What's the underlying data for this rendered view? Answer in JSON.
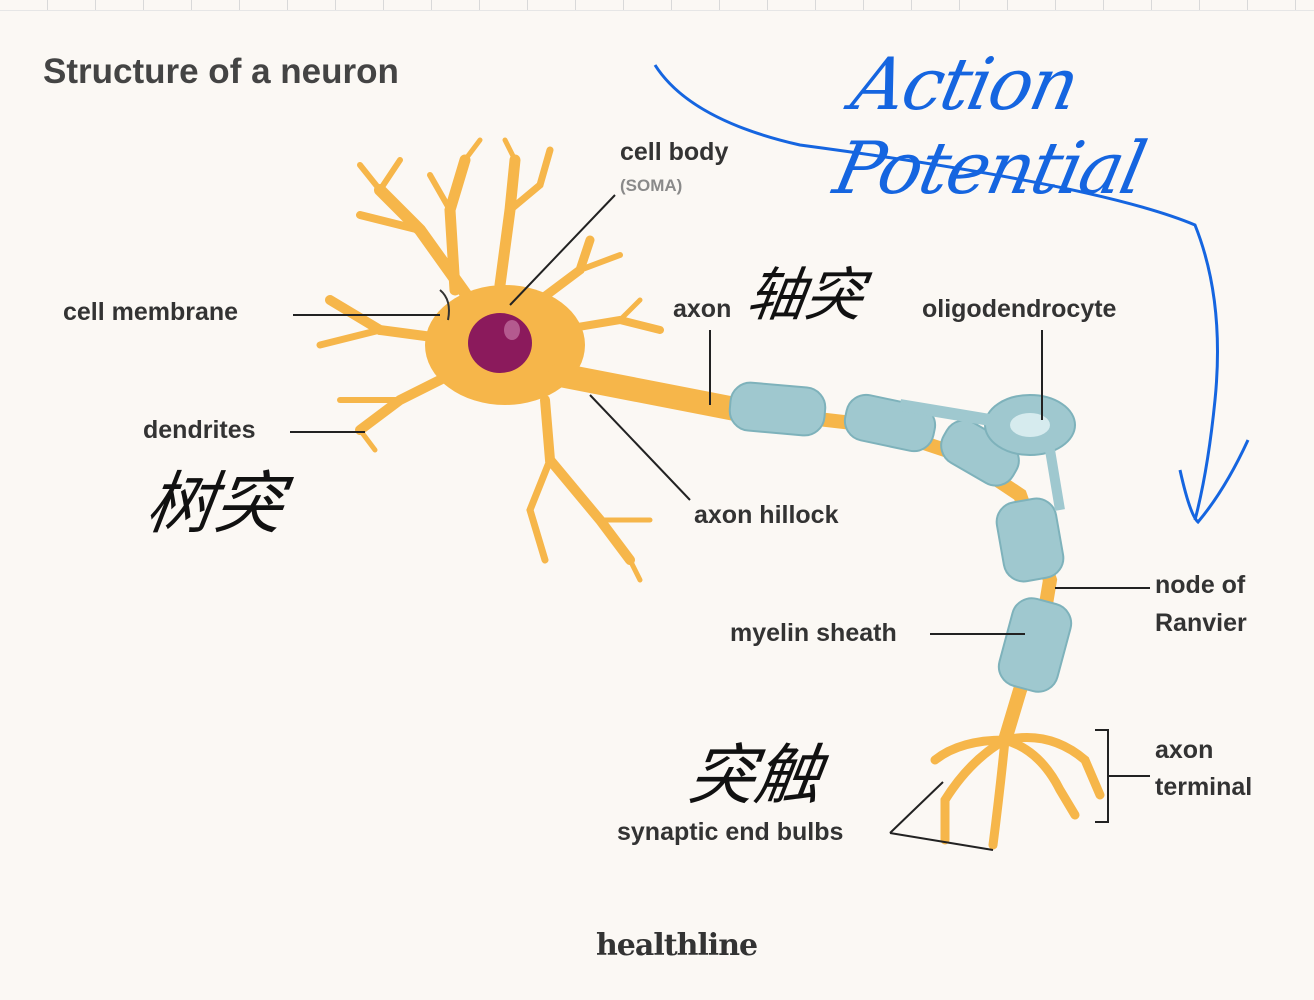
{
  "title": "Structure of a neuron",
  "labels": {
    "cell_body": "cell body",
    "soma": "(SOMA)",
    "cell_membrane": "cell membrane",
    "dendrites": "dendrites",
    "axon": "axon",
    "oligodendrocyte": "oligodendrocyte",
    "axon_hillock": "axon hillock",
    "node_of_ranvier_line1": "node of",
    "node_of_ranvier_line2": "Ranvier",
    "myelin_sheath": "myelin sheath",
    "axon_terminal_line1": "axon",
    "axon_terminal_line2": "terminal",
    "synaptic_end_bulbs": "synaptic end bulbs"
  },
  "brand": "healthline",
  "annotations": {
    "action_potential": "Action Potential",
    "axon_cn": "轴突",
    "dendrites_cn": "树突",
    "synapse_cn": "突触"
  },
  "colors": {
    "neuron": "#f6b64a",
    "nucleus": "#8b1a5c",
    "myelin": "#9fc8cf",
    "annotation_blue": "#1565e0"
  }
}
